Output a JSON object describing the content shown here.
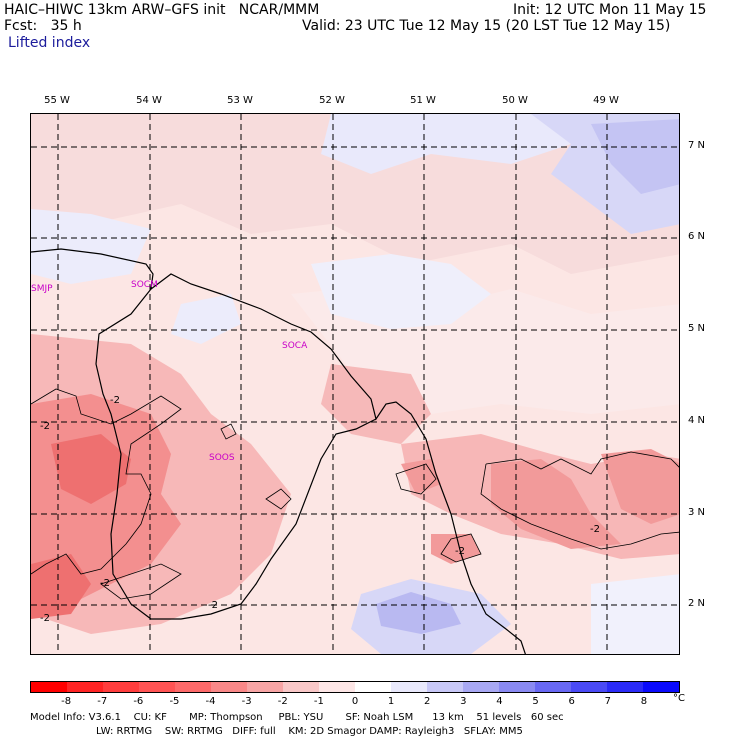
{
  "header": {
    "model": "HAIC–HIWC 13km ARW–GFS init   NCAR/MMM",
    "init": "Init: 12 UTC Mon 11 May 15",
    "fcst": "Fcst:   35 h",
    "valid": "Valid: 23 UTC Tue 12 May 15 (20 LST Tue 12 May 15)",
    "field": "Lifted index"
  },
  "map": {
    "longitude_labels": [
      "55 W",
      "54 W",
      "53 W",
      "52 W",
      "51 W",
      "50 W",
      "49 W"
    ],
    "latitude_labels": [
      "7 N",
      "6 N",
      "5 N",
      "4 N",
      "3 N",
      "2 N"
    ],
    "stations": [
      "SMJP",
      "SOCM",
      "SOCA",
      "SOOS"
    ],
    "contour_label": "-2"
  },
  "colorbar": {
    "ticks": [
      "-8",
      "-7",
      "-6",
      "-5",
      "-4",
      "-3",
      "-2",
      "-1",
      "0",
      "1",
      "2",
      "3",
      "4",
      "5",
      "6",
      "7",
      "8"
    ],
    "unit": "°C",
    "colors": [
      "#ff0000",
      "#ff2424",
      "#ff3d3d",
      "#ff5454",
      "#fd6a6a",
      "#f98888",
      "#f7a5a5",
      "#f9c8c8",
      "#fde6e6",
      "#ffffff",
      "#e9e9fc",
      "#c8c8f7",
      "#a8a8f3",
      "#8a8af2",
      "#6868f3",
      "#4a4af5",
      "#2b2bf7",
      "#0a0afc"
    ]
  },
  "footer": {
    "line1": "Model Info: V3.6.1    CU: KF       MP: Thompson     PBL: YSU       SF: Noah LSM      13 km    51 levels   60 sec",
    "line2": "LW: RRTMG    SW: RRTMG   DIFF: full    KM: 2D Smagor DAMP: Rayleigh3   SFLAY: MM5"
  }
}
